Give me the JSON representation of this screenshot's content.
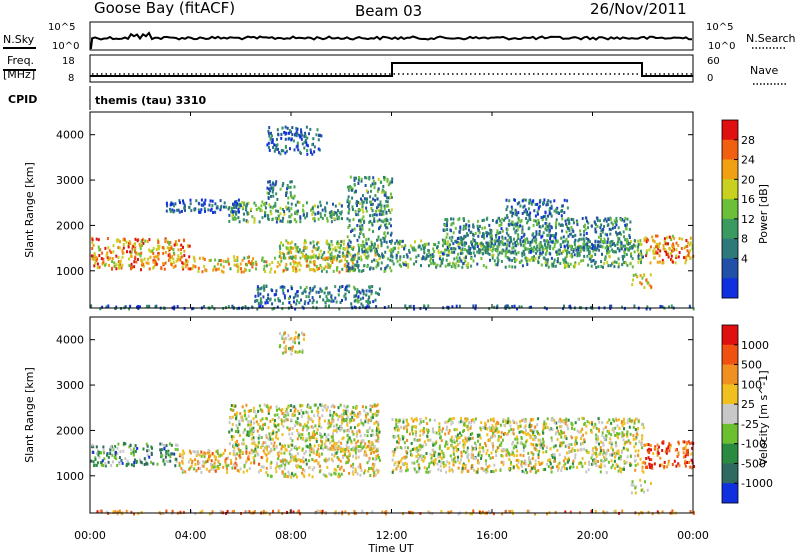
{
  "header": {
    "station": "Goose Bay (fitACF)",
    "beam": "Beam 03",
    "date": "26/Nov/2011"
  },
  "top_panels": {
    "nsky_label": "N.Sky",
    "nsearch_label": "N.Search",
    "noise_ticks": [
      "10^5",
      "10^0"
    ],
    "freq_label_1": "Freq.",
    "freq_label_2": "[MHz]",
    "freq_ticks": [
      "18",
      "8"
    ],
    "nave_label": "Nave",
    "nave_ticks": [
      "60",
      "0"
    ],
    "cpid_label": "CPID",
    "cpid_value": "themis (tau) 3310"
  },
  "chart_data": [
    {
      "type": "heatmap",
      "name": "power",
      "ylabel": "Slant Range [km]",
      "colorbar_label": "Power [dB]",
      "colorbar_ticks": [
        "28",
        "24",
        "20",
        "16",
        "12",
        "8",
        "4"
      ],
      "colors": [
        "#1030e0",
        "#2050a8",
        "#2e7a7a",
        "#3a9a60",
        "#6cbf38",
        "#c8d020",
        "#f0a010",
        "#f06010",
        "#e01010"
      ],
      "y_ticks": [
        "1000",
        "2000",
        "3000",
        "4000"
      ],
      "ylim": [
        180,
        4500
      ],
      "regions": [
        {
          "x": [
            0.0,
            4.0
          ],
          "y": [
            1050,
            1750
          ],
          "level": 0.75
        },
        {
          "x": [
            4.0,
            10.5
          ],
          "y": [
            1000,
            1350
          ],
          "level": 0.65
        },
        {
          "x": [
            7.5,
            11.5
          ],
          "y": [
            1300,
            1700
          ],
          "level": 0.5
        },
        {
          "x": [
            5.5,
            10.0
          ],
          "y": [
            2100,
            2550
          ],
          "level": 0.4
        },
        {
          "x": [
            7.0,
            8.2
          ],
          "y": [
            2600,
            3000
          ],
          "level": 0.3
        },
        {
          "x": [
            7.0,
            9.2
          ],
          "y": [
            3600,
            4200
          ],
          "level": 0.2
        },
        {
          "x": [
            3.0,
            6.0
          ],
          "y": [
            2300,
            2600
          ],
          "level": 0.15
        },
        {
          "x": [
            10.2,
            12.0
          ],
          "y": [
            1000,
            3100
          ],
          "level": 0.35
        },
        {
          "x": [
            12.0,
            22.0
          ],
          "y": [
            1100,
            1700
          ],
          "level": 0.4
        },
        {
          "x": [
            14.0,
            21.5
          ],
          "y": [
            1400,
            2200
          ],
          "level": 0.3
        },
        {
          "x": [
            16.5,
            19.0
          ],
          "y": [
            2200,
            2600
          ],
          "level": 0.2
        },
        {
          "x": [
            22.0,
            24.0
          ],
          "y": [
            1200,
            1800
          ],
          "level": 0.75
        },
        {
          "x": [
            21.5,
            22.3
          ],
          "y": [
            650,
            950
          ],
          "level": 0.65
        },
        {
          "x": [
            6.5,
            11.5
          ],
          "y": [
            300,
            700
          ],
          "level": 0.25
        },
        {
          "x": [
            0.0,
            24.0
          ],
          "y": [
            190,
            260
          ],
          "level": 0.2
        }
      ]
    },
    {
      "type": "heatmap",
      "name": "velocity",
      "ylabel": "Slant Range [km]",
      "colorbar_label": "Velocity [m s^-1]",
      "colorbar_ticks": [
        "1000",
        "500",
        "100",
        "25",
        "-25",
        "-100",
        "-500",
        "-1000"
      ],
      "colors": [
        "#1030e0",
        "#2e6a60",
        "#2a8a40",
        "#6cc030",
        "#c8c8c8",
        "#f0c020",
        "#f09020",
        "#f05010",
        "#e01010"
      ],
      "y_ticks": [
        "1000",
        "2000",
        "3000",
        "4000"
      ],
      "ylim": [
        180,
        4500
      ],
      "regions": [
        {
          "x": [
            0.0,
            3.5
          ],
          "y": [
            1250,
            1750
          ],
          "level": 0.3
        },
        {
          "x": [
            3.5,
            7.0
          ],
          "y": [
            1100,
            1600
          ],
          "level": 0.6
        },
        {
          "x": [
            7.0,
            11.5
          ],
          "y": [
            1000,
            1700
          ],
          "level": 0.55
        },
        {
          "x": [
            5.5,
            11.5
          ],
          "y": [
            1600,
            2600
          ],
          "level": 0.5
        },
        {
          "x": [
            7.5,
            8.5
          ],
          "y": [
            3700,
            4200
          ],
          "level": 0.5
        },
        {
          "x": [
            12.0,
            22.0
          ],
          "y": [
            1100,
            2300
          ],
          "level": 0.5
        },
        {
          "x": [
            22.0,
            24.0
          ],
          "y": [
            1200,
            1800
          ],
          "level": 0.85
        },
        {
          "x": [
            21.5,
            22.3
          ],
          "y": [
            650,
            950
          ],
          "level": 0.45
        },
        {
          "x": [
            0.0,
            24.0
          ],
          "y": [
            190,
            260
          ],
          "level": 0.7
        }
      ]
    }
  ],
  "x_axis": {
    "label": "Time UT",
    "ticks": [
      "00:00",
      "04:00",
      "08:00",
      "12:00",
      "16:00",
      "20:00",
      "00:00"
    ]
  }
}
